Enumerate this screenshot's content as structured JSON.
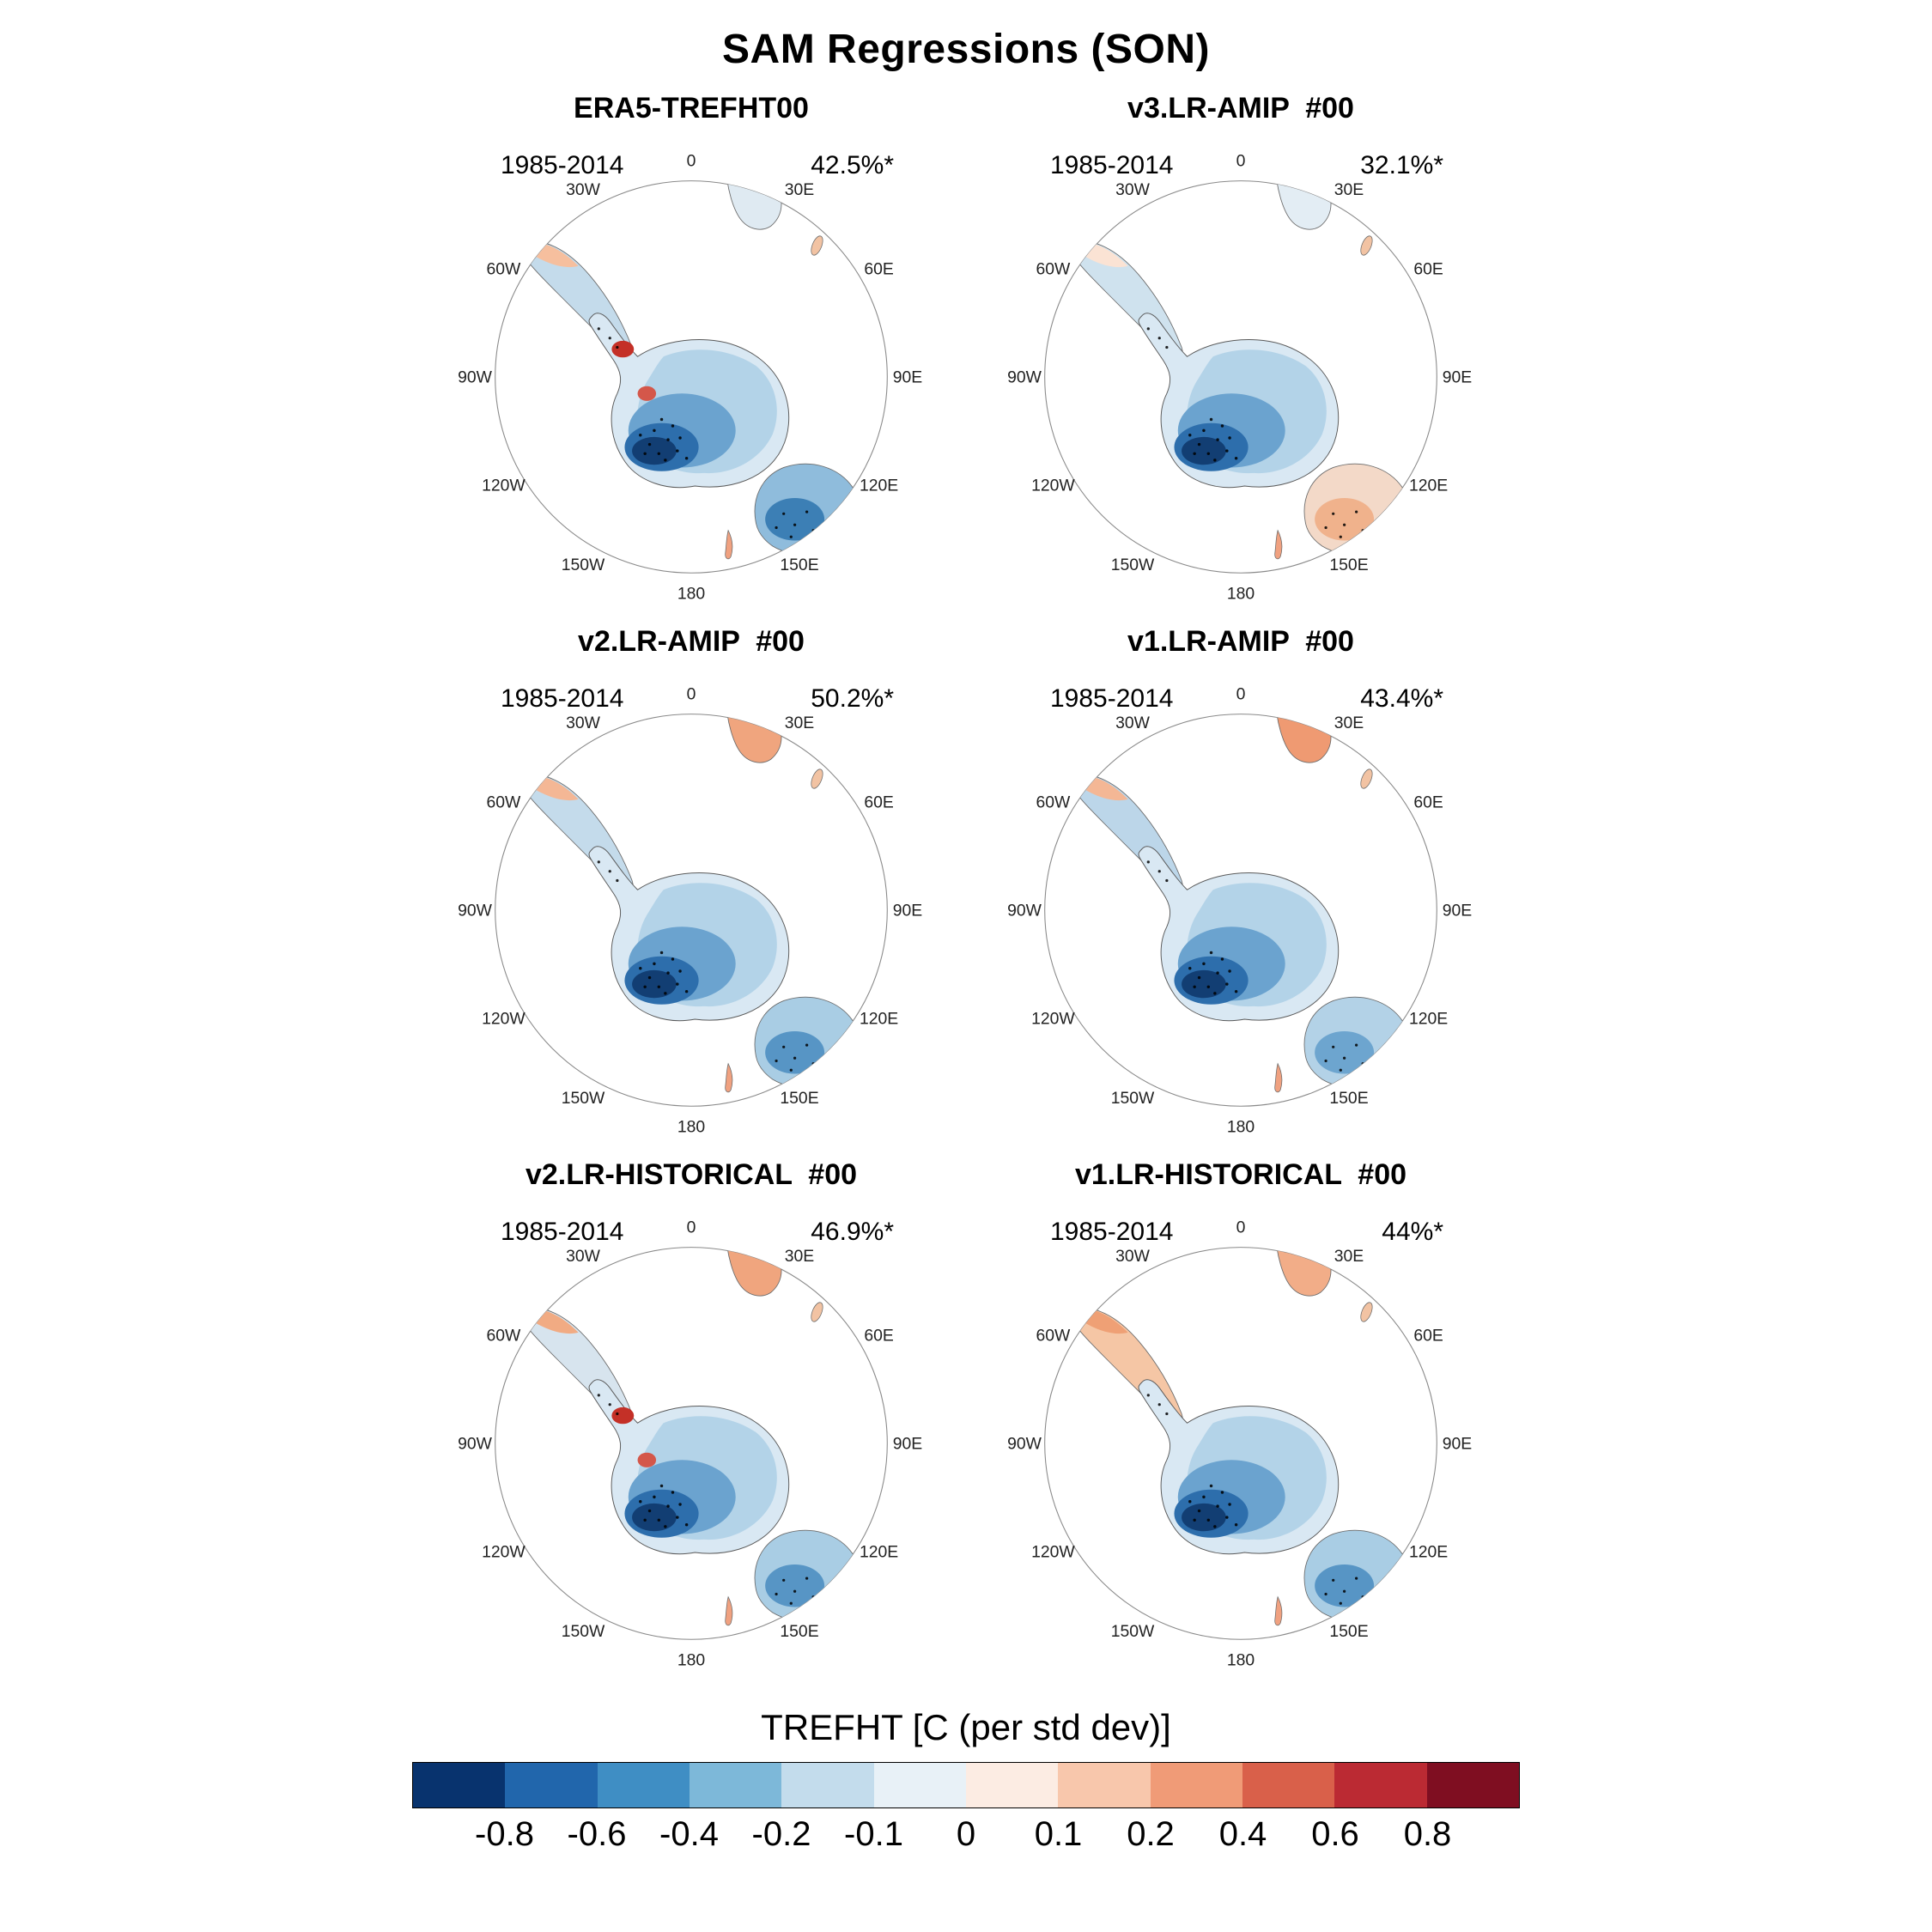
{
  "figure": {
    "title": "SAM Regressions (SON)",
    "colorbar": {
      "label": "TREFHT [C (per std dev)]",
      "ticks": [
        "-0.8",
        "-0.6",
        "-0.4",
        "-0.2",
        "-0.1",
        "0",
        "0.1",
        "0.2",
        "0.4",
        "0.6",
        "0.8"
      ],
      "colors": [
        "#08336e",
        "#2166ac",
        "#3f8ec4",
        "#7db8d9",
        "#c3dcec",
        "#e8f1f7",
        "#fcece3",
        "#f8c7ac",
        "#f09b77",
        "#d9604a",
        "#bb2a33",
        "#7f0e21"
      ]
    }
  },
  "map_labels": [
    "0",
    "30E",
    "60E",
    "90E",
    "120E",
    "150E",
    "180",
    "150W",
    "120W",
    "90W",
    "60W",
    "30W"
  ],
  "panels": [
    {
      "title": "ERA5-TREFHT00",
      "period": "1985-2014",
      "variance": "42.5%*"
    },
    {
      "title": "v3.LR-AMIP  #00",
      "period": "1985-2014",
      "variance": "32.1%*"
    },
    {
      "title": "v2.LR-AMIP  #00",
      "period": "1985-2014",
      "variance": "50.2%*"
    },
    {
      "title": "v1.LR-AMIP  #00",
      "period": "1985-2014",
      "variance": "43.4%*"
    },
    {
      "title": "v2.LR-HISTORICAL  #00",
      "period": "1985-2014",
      "variance": "46.9%*"
    },
    {
      "title": "v1.LR-HISTORICAL  #00",
      "period": "1985-2014",
      "variance": "44%*"
    }
  ],
  "chart_data": {
    "type": "heatmap",
    "title": "SAM Regressions (SON)",
    "layout": "2 columns x 3 rows of Southern Hemisphere polar stereographic maps, shared discrete colorbar at bottom",
    "panels": [
      {
        "title": "ERA5-TREFHT00",
        "period": "1985-2014",
        "variance_explained_pct": 42.5,
        "label": "42.5%*"
      },
      {
        "title": "v3.LR-AMIP  #00",
        "period": "1985-2014",
        "variance_explained_pct": 32.1,
        "label": "32.1%*"
      },
      {
        "title": "v2.LR-AMIP  #00",
        "period": "1985-2014",
        "variance_explained_pct": 50.2,
        "label": "50.2%*"
      },
      {
        "title": "v1.LR-AMIP  #00",
        "period": "1985-2014",
        "variance_explained_pct": 43.4,
        "label": "43.4%*"
      },
      {
        "title": "v2.LR-HISTORICAL  #00",
        "period": "1985-2014",
        "variance_explained_pct": 46.9,
        "label": "46.9%*"
      },
      {
        "title": "v1.LR-HISTORICAL  #00",
        "period": "1985-2014",
        "variance_explained_pct": 44.0,
        "label": "44%*"
      }
    ],
    "colorbar": {
      "label": "TREFHT [C (per std dev)]",
      "levels": [
        -0.8,
        -0.6,
        -0.4,
        -0.2,
        -0.1,
        0,
        0.1,
        0.2,
        0.4,
        0.6,
        0.8
      ],
      "colors": [
        "#08336e",
        "#2166ac",
        "#3f8ec4",
        "#7db8d9",
        "#c3dcec",
        "#e8f1f7",
        "#fcece3",
        "#f8c7ac",
        "#f09b77",
        "#d9604a",
        "#bb2a33",
        "#7f0e21"
      ]
    },
    "longitude_labels": [
      "0",
      "30E",
      "60E",
      "90E",
      "120E",
      "150E",
      "180",
      "150W",
      "120W",
      "90W",
      "60W",
      "30W"
    ]
  }
}
